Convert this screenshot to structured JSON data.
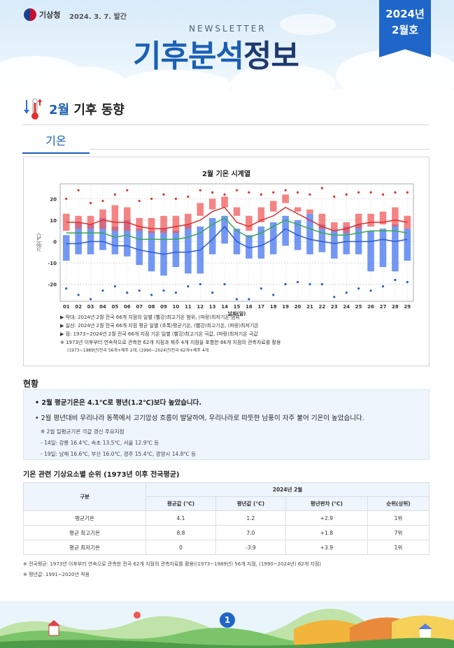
{
  "header": {
    "org": "기상청",
    "date": "2024. 3. 7. 발간",
    "newsletter": "NEWSLETTER",
    "title_a": "기후분석",
    "title_b": "정보",
    "ribbon_year": "2024년",
    "ribbon_month": "2월호"
  },
  "section": {
    "title_month": "2월",
    "title_rest": " 기후 동향",
    "tab": "기온"
  },
  "chart_data": {
    "type": "bar",
    "title": "2월 기온 시계열",
    "xlabel": "날짜(일)",
    "ylabel": "기온(℃)",
    "ylim": [
      -28,
      27
    ],
    "yticks": [
      -20,
      -10,
      0,
      10,
      20
    ],
    "categories": [
      "01",
      "02",
      "03",
      "04",
      "05",
      "06",
      "07",
      "08",
      "09",
      "10",
      "11",
      "12",
      "13",
      "14",
      "15",
      "16",
      "17",
      "18",
      "19",
      "20",
      "21",
      "22",
      "23",
      "24",
      "25",
      "26",
      "27",
      "28",
      "29"
    ],
    "series": [
      {
        "name": "최고기온 범위",
        "color": "#f25b5b",
        "low": [
          5,
          6,
          6,
          6,
          5,
          5,
          5,
          4,
          4,
          4,
          6,
          12,
          15,
          16,
          12,
          5,
          9,
          14,
          18,
          14,
          13,
          6,
          5,
          4,
          6,
          7,
          8,
          7,
          6
        ],
        "high": [
          13,
          12,
          12,
          15,
          17,
          16,
          11,
          11,
          12,
          12,
          13,
          18,
          20,
          21,
          16,
          12,
          16,
          19,
          22,
          16,
          15,
          13,
          9,
          9,
          13,
          13,
          14,
          16,
          12
        ]
      },
      {
        "name": "최저기온 범위",
        "color": "#5b86f2",
        "low": [
          -9,
          -6,
          -6,
          -4,
          -6,
          -7,
          -11,
          -14,
          -16,
          -12,
          -15,
          -15,
          -6,
          -1,
          -6,
          -8,
          -8,
          -6,
          -2,
          -4,
          -6,
          -5,
          -8,
          -6,
          -6,
          -14,
          -12,
          -14,
          -9
        ],
        "high": [
          3,
          9,
          8,
          11,
          7,
          10,
          6,
          5,
          6,
          5,
          8,
          7,
          11,
          12,
          6,
          3,
          7,
          9,
          12,
          10,
          13,
          8,
          5,
          7,
          8,
          5,
          6,
          8,
          6
        ]
      },
      {
        "name": "평균기온",
        "color": "#39a84b",
        "values": [
          4,
          4,
          4,
          4,
          2,
          3,
          1,
          1,
          1,
          1,
          2,
          4,
          8,
          11,
          5,
          2,
          4,
          7,
          10,
          8,
          6,
          4,
          3,
          3,
          4,
          5,
          5,
          5,
          4
        ]
      },
      {
        "name": "평균 최고기온",
        "color": "#d93030",
        "values": [
          9,
          9,
          8,
          10,
          9,
          9,
          7,
          6,
          6,
          7,
          8,
          10,
          14,
          16,
          9,
          7,
          10,
          12,
          16,
          13,
          10,
          7,
          5,
          6,
          8,
          9,
          9,
          10,
          9
        ]
      },
      {
        "name": "평균 최저기온",
        "color": "#2f5bc7",
        "values": [
          -1,
          -1,
          0,
          0,
          -2,
          -2,
          -4,
          -5,
          -6,
          -5,
          -5,
          -4,
          1,
          7,
          0,
          -3,
          -2,
          1,
          6,
          3,
          1,
          0,
          -1,
          0,
          0,
          0,
          1,
          0,
          1
        ]
      },
      {
        "name": "극값 최고",
        "color": "#d93030",
        "values": [
          20,
          24,
          18,
          19,
          22,
          24,
          19,
          20,
          22,
          20,
          21,
          24,
          23,
          22,
          24,
          23,
          22,
          23,
          24,
          23,
          22,
          25,
          21,
          22,
          23,
          23,
          22,
          23,
          23
        ]
      },
      {
        "name": "극값 최저",
        "color": "#2f5bc7",
        "values": [
          -22,
          -25,
          -27,
          -23,
          -21,
          -24,
          -23,
          -25,
          -23,
          -24,
          -21,
          -20,
          -24,
          -20,
          -27,
          -27,
          -22,
          -25,
          -20,
          -19,
          -20,
          -20,
          -26,
          -24,
          -22,
          -23,
          -21,
          -18,
          -19
        ]
      }
    ],
    "notes": [
      "▶ 막대: 2024년 2월 전국 66개 지점의 일별 (빨강)최고기온 범위, (파랑)최저기온 범위",
      "▶ 실선: 2024년 2월 전국 66개 지점 평균 일별 (초록)평균기온, (빨강)최고기온, (파랑)최저기온",
      "▶ 점: 1973~2024년 2월 전국 66개 지점 기온 일별 (빨강)최고기온 극값, (파랑)최저기온 극값",
      "※ 1973년 이후부터 연속적으로 관측한 62개 지점과 제주 4개 지점을 포함한 66개 지점의 관측자료를 활용",
      "(1973~1989년)전국 56개+제주 2개, (1990~2024년)전국 62개+제주 4개"
    ]
  },
  "status": {
    "title": "현황",
    "line1": "• 2월 평균기온은 4.1℃로 평년(1.2℃)보다 높았습니다.",
    "line2": "• 2월 평년대비 우리나라 동쪽에서 고기압성 흐름이 발달하여, 우리나라로 따뜻한 남풍이 자주 불어 기온이 높았습니다.",
    "sub0": "※ 2월 일평균기온 극값 경신 주요지점",
    "sub1": "- 14일: 강릉 16.4℃, 속초 13.5℃, 서울 12.9℃ 등",
    "sub2": "- 19일: 남해 16.6℃, 부산 16.0℃, 경주 15.4℃, 광양시 14.8℃ 등"
  },
  "table": {
    "title": "기온 관련 기상요소별 순위 (1973년 이후 전국평균)",
    "col_group": "구분",
    "period": "2024년 2월",
    "cols": [
      "평균값 (℃)",
      "평년값 (℃)",
      "평년편차 (℃)",
      "순위(상위)"
    ],
    "rows": [
      [
        "평균기온",
        "4.1",
        "1.2",
        "+2.9",
        "1위"
      ],
      [
        "평균 최고기온",
        "8.8",
        "7.0",
        "+1.8",
        "7위"
      ],
      [
        "평균 최저기온",
        "0",
        "-3.9",
        "+3.9",
        "1위"
      ]
    ],
    "foot1": "※ 전국평균: 1973년 이후부터 연속으로 관측한 전국 62개 지점의 관측자료를 활용((1973~1989년) 56개 지점, (1990~2024년) 62개 지점)",
    "foot2": "※ 평년값: 1991~2020년 적용"
  },
  "page_number": "1"
}
